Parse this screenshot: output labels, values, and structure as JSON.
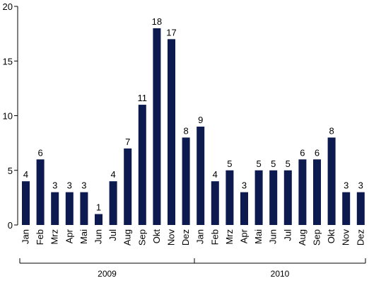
{
  "chart_data": {
    "type": "bar",
    "title": "",
    "xlabel": "",
    "ylabel": "",
    "ylim": [
      0,
      20
    ],
    "yticks": [
      0,
      5,
      10,
      15,
      20
    ],
    "grid": false,
    "bar_color": "#0d1a4f",
    "categories": [
      "Jan",
      "Feb",
      "Mrz",
      "Apr",
      "Mai",
      "Jun",
      "Jul",
      "Aug",
      "Sep",
      "Okt",
      "Nov",
      "Dez",
      "Jan",
      "Feb",
      "Mrz",
      "Apr",
      "Mai",
      "Jun",
      "Jul",
      "Aug",
      "Sep",
      "Okt",
      "Nov",
      "Dez"
    ],
    "values": [
      4,
      6,
      3,
      3,
      3,
      1,
      4,
      7,
      11,
      18,
      17,
      8,
      9,
      4,
      5,
      3,
      5,
      5,
      5,
      6,
      6,
      8,
      3,
      3
    ],
    "groups": [
      {
        "label": "2009",
        "start": 0,
        "end": 11
      },
      {
        "label": "2010",
        "start": 12,
        "end": 23
      }
    ]
  }
}
